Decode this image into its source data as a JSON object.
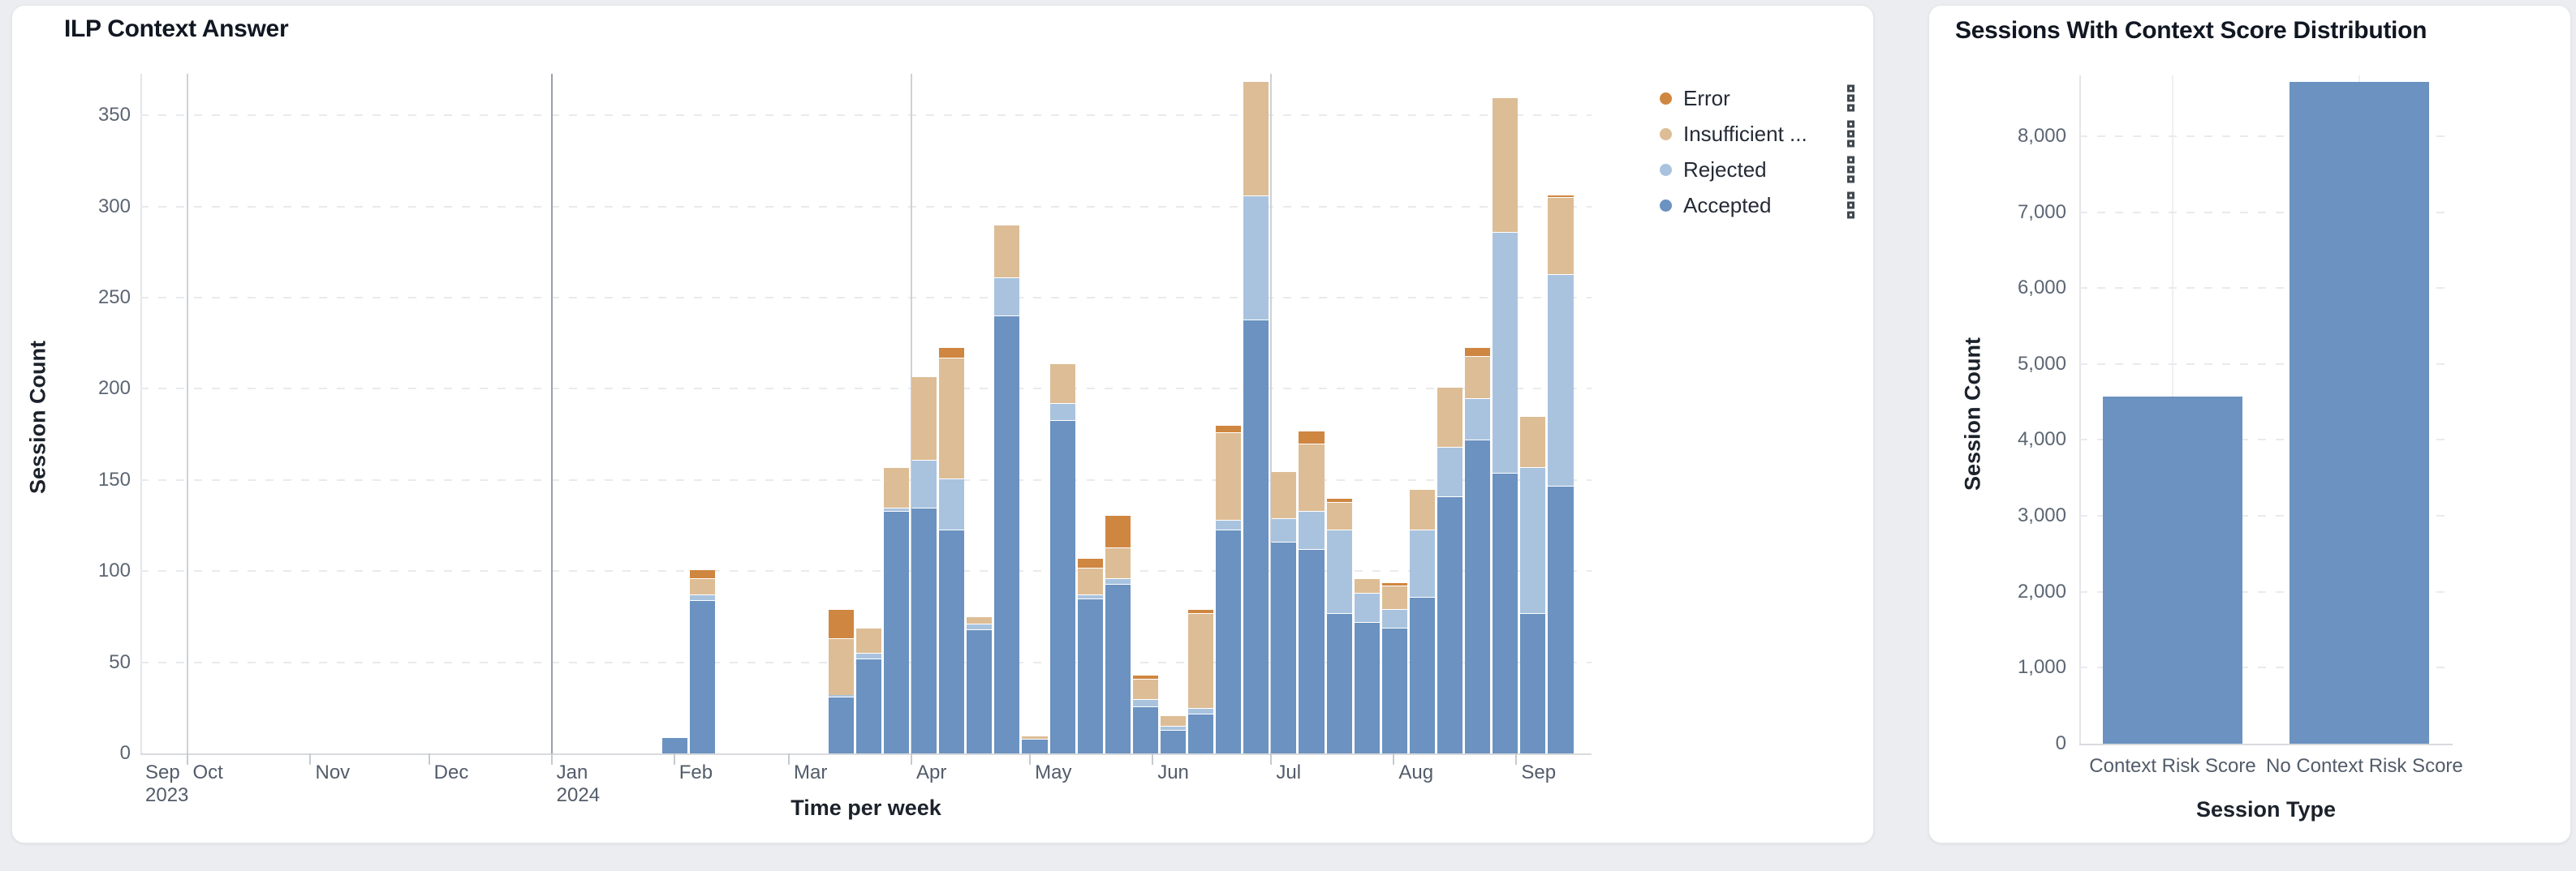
{
  "page": {
    "background": "#ecedf0"
  },
  "colors": {
    "accepted": "#6b92c0",
    "rejected": "#a9c3de",
    "insufficient": "#ddbd96",
    "error": "#cf8640",
    "grid": "#e8eaee",
    "quarter_line": "#cdd1d7",
    "year_line": "#9aa1ab"
  },
  "left_chart": {
    "title": "ILP Context Answer",
    "y_label": "Session Count",
    "x_label": "Time per week",
    "y_ticks": [
      "0",
      "50",
      "100",
      "150",
      "200",
      "250",
      "300",
      "350"
    ],
    "legend": [
      {
        "label": "Error",
        "color": "#cf8640"
      },
      {
        "label": "Insufficient ...",
        "color": "#ddbd96"
      },
      {
        "label": "Rejected",
        "color": "#a9c3de"
      },
      {
        "label": "Accepted",
        "color": "#6b92c0"
      }
    ],
    "months": [
      {
        "label": "Sep",
        "year": "2023",
        "date": "2023-09-19",
        "line": "none",
        "edge": true
      },
      {
        "label": "Oct",
        "date": "2023-10-01",
        "line": "quarter"
      },
      {
        "label": "Nov",
        "date": "2023-11-01",
        "line": "none"
      },
      {
        "label": "Dec",
        "date": "2023-12-01",
        "line": "none"
      },
      {
        "label": "Jan",
        "year": "2024",
        "date": "2024-01-01",
        "line": "year"
      },
      {
        "label": "Feb",
        "date": "2024-02-01",
        "line": "none"
      },
      {
        "label": "Mar",
        "date": "2024-03-01",
        "line": "none"
      },
      {
        "label": "Apr",
        "date": "2024-04-01",
        "line": "quarter"
      },
      {
        "label": "May",
        "date": "2024-05-01",
        "line": "none"
      },
      {
        "label": "Jun",
        "date": "2024-06-01",
        "line": "none"
      },
      {
        "label": "Jul",
        "date": "2024-07-01",
        "line": "quarter"
      },
      {
        "label": "Aug",
        "date": "2024-08-01",
        "line": "none"
      },
      {
        "label": "Sep",
        "date": "2024-09-01",
        "line": "none"
      }
    ]
  },
  "right_chart": {
    "title": "Sessions With Context Score Distribution",
    "y_label": "Session Count",
    "x_label": "Session Type",
    "y_ticks": [
      "0",
      "1,000",
      "2,000",
      "3,000",
      "4,000",
      "5,000",
      "6,000",
      "7,000",
      "8,000"
    ]
  },
  "chart_data": [
    {
      "type": "bar",
      "stacked": true,
      "title": "ILP Context Answer",
      "xlabel": "Time per week",
      "ylabel": "Session Count",
      "ylim": [
        0,
        372
      ],
      "x_domain": [
        "2023-09-19",
        "2024-09-20"
      ],
      "grid": "horizontal-dashed",
      "legend_position": "right",
      "x": [
        "2024-01-29",
        "2024-02-05",
        "2024-02-12",
        "2024-02-19",
        "2024-02-26",
        "2024-03-04",
        "2024-03-11",
        "2024-03-18",
        "2024-03-25",
        "2024-04-01",
        "2024-04-08",
        "2024-04-15",
        "2024-04-22",
        "2024-04-29",
        "2024-05-06",
        "2024-05-13",
        "2024-05-20",
        "2024-05-27",
        "2024-06-03",
        "2024-06-10",
        "2024-06-17",
        "2024-06-24",
        "2024-07-01",
        "2024-07-08",
        "2024-07-15",
        "2024-07-22",
        "2024-07-29",
        "2024-08-05",
        "2024-08-12",
        "2024-08-19",
        "2024-08-26",
        "2024-09-02",
        "2024-09-09"
      ],
      "series": [
        {
          "name": "Accepted",
          "color_key": "accepted",
          "values": [
            9,
            84,
            0,
            0,
            0,
            0,
            31,
            52,
            133,
            135,
            123,
            68,
            240,
            8,
            183,
            85,
            93,
            26,
            13,
            22,
            123,
            238,
            116,
            112,
            77,
            72,
            69,
            86,
            141,
            172,
            154,
            77,
            147
          ]
        },
        {
          "name": "Rejected",
          "color_key": "rejected",
          "values": [
            0,
            3,
            0,
            0,
            0,
            0,
            1,
            3,
            2,
            26,
            28,
            3,
            21,
            0,
            9,
            2,
            3,
            4,
            2,
            3,
            5,
            68,
            13,
            21,
            46,
            16,
            10,
            37,
            27,
            23,
            132,
            80,
            116
          ]
        },
        {
          "name": "Insufficient ...",
          "color_key": "insufficient",
          "values": [
            0,
            9,
            0,
            0,
            0,
            0,
            31,
            14,
            22,
            46,
            66,
            4,
            29,
            2,
            22,
            15,
            17,
            11,
            6,
            52,
            48,
            63,
            26,
            37,
            15,
            8,
            13,
            22,
            33,
            23,
            74,
            28,
            42
          ]
        },
        {
          "name": "Error",
          "color_key": "error",
          "values": [
            0,
            5,
            0,
            0,
            0,
            0,
            16,
            0,
            0,
            0,
            6,
            0,
            0,
            0,
            0,
            5,
            18,
            2,
            0,
            2,
            4,
            0,
            0,
            7,
            2,
            0,
            2,
            0,
            0,
            5,
            0,
            0,
            1
          ]
        }
      ]
    },
    {
      "type": "bar",
      "stacked": false,
      "title": "Sessions With Context Score Distribution",
      "xlabel": "Session Type",
      "ylabel": "Session Count",
      "ylim": [
        0,
        8800
      ],
      "grid": "horizontal-dashed",
      "categories": [
        "Context Risk Score",
        "No Context Risk Score"
      ],
      "values": [
        4570,
        8720
      ],
      "bar_color_key": "accepted"
    }
  ]
}
